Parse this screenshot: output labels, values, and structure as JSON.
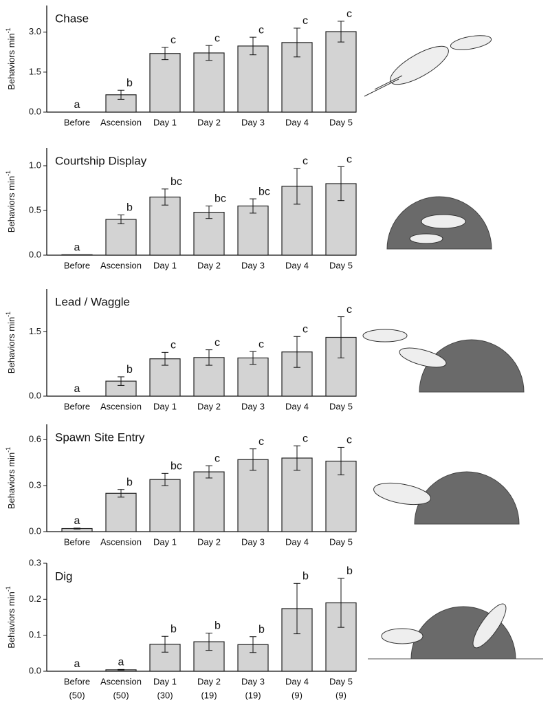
{
  "chart_data": [
    {
      "type": "bar",
      "title": "Chase",
      "y_label": "Behaviors min",
      "y_label_exponent": "-1",
      "categories": [
        "Before",
        "Ascension",
        "Day 1",
        "Day 2",
        "Day 3",
        "Day 4",
        "Day 5"
      ],
      "values": [
        0,
        0.65,
        2.2,
        2.22,
        2.48,
        2.61,
        3.02
      ],
      "errors": [
        0,
        0.17,
        0.23,
        0.28,
        0.33,
        0.54,
        0.39
      ],
      "annotations": [
        "a",
        "b",
        "c",
        "c",
        "c",
        "c",
        "c"
      ],
      "color": "#d3d3d3",
      "ylim": [
        0,
        4.0
      ],
      "yticks": [
        {
          "value": 0,
          "label": "0.0"
        },
        1.5,
        {
          "value": 3,
          "label": "3.0"
        }
      ]
    },
    {
      "type": "bar",
      "title": "Courtship Display",
      "y_label": "Behaviors min",
      "y_label_exponent": "-1",
      "categories": [
        "Before",
        "Ascension",
        "Day 1",
        "Day 2",
        "Day 3",
        "Day 4",
        "Day 5"
      ],
      "values": [
        0.005,
        0.4,
        0.65,
        0.48,
        0.55,
        0.77,
        0.8
      ],
      "errors": [
        0,
        0.05,
        0.09,
        0.07,
        0.08,
        0.2,
        0.19
      ],
      "annotations": [
        "a",
        "b",
        "bc",
        "bc",
        "bc",
        "c",
        "c"
      ],
      "color": "#d3d3d3",
      "ylim": [
        0,
        1.2
      ],
      "yticks": [
        {
          "value": 0,
          "label": "0.0"
        },
        0.5,
        {
          "value": 1,
          "label": "1.0"
        }
      ]
    },
    {
      "type": "bar",
      "title": "Lead / Waggle",
      "y_label": "Behaviors min",
      "y_label_exponent": "-1",
      "categories": [
        "Before",
        "Ascension",
        "Day 1",
        "Day 2",
        "Day 3",
        "Day 4",
        "Day 5"
      ],
      "values": [
        0,
        0.35,
        0.87,
        0.9,
        0.89,
        1.03,
        1.37
      ],
      "errors": [
        0,
        0.1,
        0.15,
        0.18,
        0.15,
        0.36,
        0.48
      ],
      "annotations": [
        "a",
        "b",
        "c",
        "c",
        "c",
        "c",
        "c"
      ],
      "color": "#d3d3d3",
      "ylim": [
        0,
        2.5
      ],
      "yticks": [
        {
          "value": 0,
          "label": "0.0"
        },
        1.5
      ]
    },
    {
      "type": "bar",
      "title": "Spawn Site Entry",
      "y_label": "Behaviors min",
      "y_label_exponent": "-1",
      "categories": [
        "Before",
        "Ascension",
        "Day 1",
        "Day 2",
        "Day 3",
        "Day 4",
        "Day 5"
      ],
      "values": [
        0.02,
        0.25,
        0.34,
        0.39,
        0.47,
        0.48,
        0.46
      ],
      "errors": [
        0.003,
        0.025,
        0.04,
        0.04,
        0.07,
        0.08,
        0.09
      ],
      "annotations": [
        "a",
        "b",
        "bc",
        "c",
        "c",
        "c",
        "c"
      ],
      "color": "#d3d3d3",
      "ylim": [
        0,
        0.7
      ],
      "yticks": [
        {
          "value": 0,
          "label": "0.0"
        },
        0.3,
        0.6
      ]
    },
    {
      "type": "bar",
      "title": "Dig",
      "y_label": "Behaviors min",
      "y_label_exponent": "-1",
      "categories": [
        "Before",
        "Ascension",
        "Day 1",
        "Day 2",
        "Day 3",
        "Day 4",
        "Day 5"
      ],
      "sample_sizes": [
        "(50)",
        "(50)",
        "(30)",
        "(19)",
        "(19)",
        "(9)",
        "(9)"
      ],
      "values": [
        0,
        0.004,
        0.075,
        0.082,
        0.074,
        0.174,
        0.19
      ],
      "errors": [
        0,
        0.001,
        0.022,
        0.024,
        0.022,
        0.07,
        0.068
      ],
      "annotations": [
        "a",
        "a",
        "b",
        "b",
        "b",
        "b",
        "b"
      ],
      "color": "#d3d3d3",
      "ylim": [
        0,
        0.3
      ],
      "yticks": [
        {
          "value": 0,
          "label": "0.0"
        },
        0.1,
        0.2,
        0.3
      ]
    }
  ]
}
